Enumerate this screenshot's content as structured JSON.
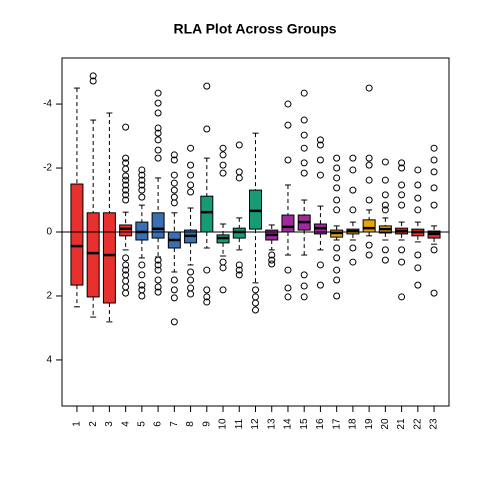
{
  "chart_data": {
    "type": "boxplot",
    "title": "RLA Plot Across Groups",
    "categories": [
      "1",
      "2",
      "3",
      "4",
      "5",
      "6",
      "7",
      "8",
      "9",
      "10",
      "11",
      "12",
      "13",
      "14",
      "15",
      "16",
      "17",
      "18",
      "19",
      "20",
      "21",
      "22",
      "23"
    ],
    "colors": [
      "#e8302e",
      "#e8302e",
      "#e8302e",
      "#e8302e",
      "#3a6fb4",
      "#3a6fb4",
      "#3a6fb4",
      "#3a6fb4",
      "#179b77",
      "#179b77",
      "#179b77",
      "#179b77",
      "#9e2a9c",
      "#9e2a9c",
      "#9e2a9c",
      "#9e2a9c",
      "#e9a30d",
      "#e9a30d",
      "#e9a30d",
      "#e9a30d",
      "#e8302e",
      "#e8302e",
      "#e8302e"
    ],
    "boxes": [
      {
        "min": -4.5,
        "q1": -1.5,
        "median": 0.44,
        "q3": 1.66,
        "max": 2.34,
        "outliers": []
      },
      {
        "min": -3.5,
        "q1": -0.6,
        "median": 0.66,
        "q3": 2.03,
        "max": 2.66,
        "outliers": [
          -4.88,
          -4.72
        ]
      },
      {
        "min": -3.72,
        "q1": -0.6,
        "median": 0.72,
        "q3": 2.22,
        "max": 2.81,
        "outliers": []
      },
      {
        "min": -0.62,
        "q1": -0.22,
        "median": -0.1,
        "q3": 0.12,
        "max": 0.56,
        "outliers": [
          -3.28,
          -2.31,
          -2.16,
          -1.97,
          -1.75,
          -1.62,
          -1.47,
          -1.31,
          -1.16,
          -1.0,
          0.81,
          1.03,
          1.19,
          1.34,
          1.53,
          1.72,
          1.91
        ]
      },
      {
        "min": -0.84,
        "q1": -0.31,
        "median": 0,
        "q3": 0.25,
        "max": 0.81,
        "outliers": [
          -1.94,
          -1.78,
          -1.62,
          -1.47,
          -1.31,
          -1.09,
          1.03,
          1.34,
          1.66,
          1.81,
          2.0
        ]
      },
      {
        "min": -1.69,
        "q1": -0.6,
        "median": -0.1,
        "q3": 0.19,
        "max": 0.78,
        "outliers": [
          -4.34,
          -4.03,
          -3.72,
          -3.25,
          -3.09,
          -2.88,
          -2.56,
          -2.31,
          0.88,
          1.03,
          1.19,
          1.5,
          1.72,
          1.88
        ]
      },
      {
        "min": -0.6,
        "q1": 0,
        "median": 0.25,
        "q3": 0.5,
        "max": 1.25,
        "outliers": [
          -2.41,
          -2.25,
          -1.78,
          -1.53,
          -1.31,
          -1.09,
          -0.91,
          1.5,
          1.81,
          2.06,
          2.81
        ]
      },
      {
        "min": -0.75,
        "q1": -0.06,
        "median": 0.12,
        "q3": 0.34,
        "max": 1.03,
        "outliers": [
          -2.62,
          -2.09,
          -1.78,
          -1.47,
          -1.25,
          1.25,
          1.5,
          1.75,
          1.94
        ]
      },
      {
        "min": -2.31,
        "q1": -1.12,
        "median": -0.62,
        "q3": 0,
        "max": 0.5,
        "outliers": [
          -4.56,
          -3.22,
          1.19,
          1.81,
          2.03,
          2.19
        ]
      },
      {
        "min": -0.25,
        "q1": 0.09,
        "median": 0.19,
        "q3": 0.34,
        "max": 0.75,
        "outliers": [
          -2.62,
          -2.41,
          -2.09,
          -1.84,
          0.94,
          1.12,
          1.81
        ]
      },
      {
        "min": -0.44,
        "q1": -0.12,
        "median": 0,
        "q3": 0.19,
        "max": 0.56,
        "outliers": [
          -2.72,
          -1.88,
          -1.69,
          1.03,
          1.19,
          1.34
        ]
      },
      {
        "min": -3.09,
        "q1": -1.31,
        "median": -0.66,
        "q3": -0.09,
        "max": 1.59,
        "outliers": [
          1.81,
          2.03,
          2.22,
          2.44
        ]
      },
      {
        "min": -0.22,
        "q1": -0.06,
        "median": 0.09,
        "q3": 0.25,
        "max": 0.56,
        "outliers": [
          0.72,
          0.88,
          1.0
        ]
      },
      {
        "min": -1.47,
        "q1": -0.53,
        "median": -0.16,
        "q3": 0,
        "max": 0.72,
        "outliers": [
          -4.0,
          -3.34,
          -2.25,
          1.19,
          1.75,
          2.03
        ]
      },
      {
        "min": -1.0,
        "q1": -0.53,
        "median": -0.31,
        "q3": -0.06,
        "max": 0.72,
        "outliers": [
          -4.34,
          -3.5,
          -3.03,
          -2.62,
          -2.16,
          -1.84,
          1.34,
          1.69,
          2.03
        ]
      },
      {
        "min": -0.81,
        "q1": -0.25,
        "median": -0.12,
        "q3": 0.06,
        "max": 0.56,
        "outliers": [
          -2.88,
          -2.72,
          -2.25,
          -1.78,
          1.03,
          1.66
        ]
      },
      {
        "min": -0.19,
        "q1": -0.06,
        "median": 0.03,
        "q3": 0.16,
        "max": 0.25,
        "outliers": [
          -2.31,
          -2.0,
          -1.69,
          -1.38,
          -1.0,
          -0.69,
          0.5,
          0.81,
          1.19,
          1.5,
          2.0
        ]
      },
      {
        "min": -0.31,
        "q1": -0.09,
        "median": -0.03,
        "q3": 0.06,
        "max": 0.25,
        "outliers": [
          -2.31,
          -1.94,
          -1.31,
          -0.69,
          0.5,
          0.94
        ]
      },
      {
        "min": -0.69,
        "q1": -0.38,
        "median": -0.12,
        "q3": 0,
        "max": 0.12,
        "outliers": [
          -4.5,
          -2.31,
          -2.09,
          -1.62,
          -1.0,
          0.41,
          0.72
        ]
      },
      {
        "min": -0.44,
        "q1": -0.19,
        "median": -0.09,
        "q3": 0.03,
        "max": 0.25,
        "outliers": [
          -2.19,
          -1.62,
          -1.16,
          -0.84,
          -0.69,
          0.56,
          0.88
        ]
      },
      {
        "min": -0.31,
        "q1": -0.12,
        "median": -0.03,
        "q3": 0.06,
        "max": 0.25,
        "outliers": [
          -2.16,
          -2.0,
          -1.47,
          -1.16,
          -0.84,
          0.56,
          0.94,
          2.03
        ]
      },
      {
        "min": -0.31,
        "q1": -0.09,
        "median": 0,
        "q3": 0.12,
        "max": 0.31,
        "outliers": [
          -1.94,
          -1.47,
          -1.06,
          -0.69,
          0.72,
          1.12,
          1.66
        ]
      },
      {
        "min": -0.19,
        "q1": -0.03,
        "median": 0.06,
        "q3": 0.19,
        "max": 0.38,
        "outliers": [
          -2.62,
          -2.25,
          -1.88,
          -1.38,
          -0.84,
          0.56,
          1.91
        ]
      }
    ],
    "ylim": [
      5.44,
      -5.44
    ],
    "yticks": [
      -4,
      -2,
      0,
      2,
      4
    ],
    "hline": 0
  }
}
